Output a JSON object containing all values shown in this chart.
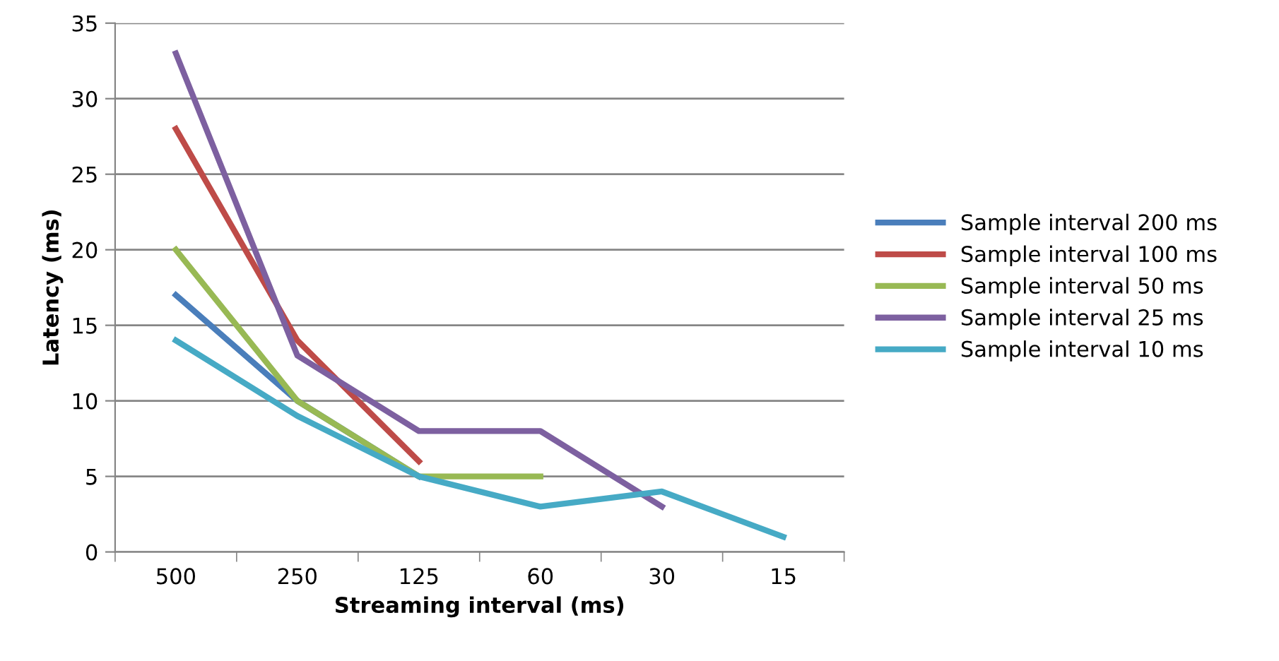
{
  "chart_data": {
    "type": "line",
    "xlabel": "Streaming interval (ms)",
    "ylabel": "Latency (ms)",
    "categories": [
      "500",
      "250",
      "125",
      "60",
      "30",
      "15"
    ],
    "series": [
      {
        "name": "Sample interval 200 ms",
        "color": "#4a7ebb",
        "values": [
          17,
          10,
          5,
          null,
          null,
          null
        ]
      },
      {
        "name": "Sample interval 100 ms",
        "color": "#be4b48",
        "values": [
          28,
          14,
          6,
          null,
          null,
          null
        ]
      },
      {
        "name": "Sample interval 50 ms",
        "color": "#98b954",
        "values": [
          20,
          10,
          5,
          5,
          null,
          null
        ]
      },
      {
        "name": "Sample interval 25 ms",
        "color": "#7d60a0",
        "values": [
          33,
          13,
          8,
          8,
          3,
          null
        ]
      },
      {
        "name": "Sample interval 10 ms",
        "color": "#46aac5",
        "values": [
          14,
          9,
          5,
          3,
          4,
          1
        ]
      }
    ],
    "ylim": [
      0,
      35
    ],
    "yticks": [
      0,
      5,
      10,
      15,
      20,
      25,
      30,
      35
    ],
    "grid": "y",
    "legend": "right",
    "marker": "none",
    "line_style": "solid"
  }
}
